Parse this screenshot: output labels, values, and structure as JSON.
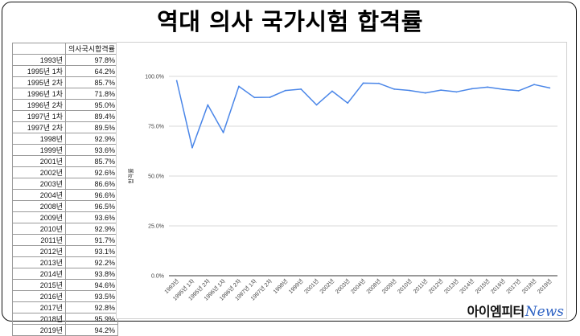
{
  "page": {
    "title": "역대 의사 국가시험 합격률"
  },
  "table": {
    "header": [
      "",
      "의사국시합격률"
    ],
    "rows": [
      [
        "1993년",
        "97.8%"
      ],
      [
        "1995년 1차",
        "64.2%"
      ],
      [
        "1995년 2차",
        "85.7%"
      ],
      [
        "1996년 1차",
        "71.8%"
      ],
      [
        "1996년 2차",
        "95.0%"
      ],
      [
        "1997년 1차",
        "89.4%"
      ],
      [
        "1997년 2차",
        "89.5%"
      ],
      [
        "1998년",
        "92.9%"
      ],
      [
        "1999년",
        "93.6%"
      ],
      [
        "2001년",
        "85.7%"
      ],
      [
        "2002년",
        "92.6%"
      ],
      [
        "2003년",
        "86.6%"
      ],
      [
        "2004년",
        "96.6%"
      ],
      [
        "2008년",
        "96.5%"
      ],
      [
        "2009년",
        "93.6%"
      ],
      [
        "2010년",
        "92.9%"
      ],
      [
        "2011년",
        "91.7%"
      ],
      [
        "2012년",
        "93.1%"
      ],
      [
        "2013년",
        "92.2%"
      ],
      [
        "2014년",
        "93.8%"
      ],
      [
        "2015년",
        "94.6%"
      ],
      [
        "2016년",
        "93.5%"
      ],
      [
        "2017년",
        "92.8%"
      ],
      [
        "2018년",
        "95.9%"
      ],
      [
        "2019년",
        "94.2%"
      ]
    ]
  },
  "chart_data": {
    "type": "line",
    "title": "",
    "xlabel": "",
    "ylabel": "합격률",
    "categories": [
      "1993년",
      "1995년 1차",
      "1995년 2차",
      "1996년 1차",
      "1996년 2차",
      "1997년 1차",
      "1997년 2차",
      "1998년",
      "1999년",
      "2001년",
      "2002년",
      "2003년",
      "2004년",
      "2008년",
      "2009년",
      "2010년",
      "2011년",
      "2012년",
      "2013년",
      "2014년",
      "2015년",
      "2016년",
      "2017년",
      "2018년",
      "2019년"
    ],
    "series": [
      {
        "values": [
          97.8,
          64.2,
          85.7,
          71.8,
          95.0,
          89.4,
          89.5,
          92.9,
          93.6,
          85.7,
          92.6,
          86.6,
          96.6,
          96.5,
          93.6,
          92.9,
          91.7,
          93.1,
          92.2,
          93.8,
          94.6,
          93.5,
          92.8,
          95.9,
          94.2
        ],
        "color": "#4a86e8"
      }
    ],
    "ylim": [
      0,
      100
    ],
    "yticks": [
      "0.0%",
      "25.0%",
      "50.0%",
      "75.0%",
      "100.0%"
    ],
    "grid": true,
    "legend": "none"
  },
  "brand": {
    "korean": "아이엠피터",
    "news": "News"
  }
}
